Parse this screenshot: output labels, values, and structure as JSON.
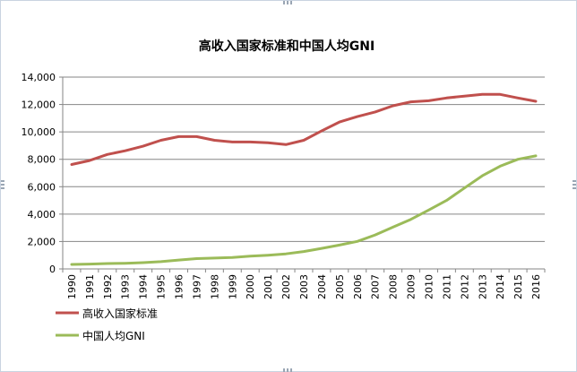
{
  "chart_data": {
    "type": "line",
    "title": "高收入国家标准和中国人均GNI",
    "xlabel": "",
    "ylabel": "",
    "ylim": [
      0,
      14000
    ],
    "yticks": [
      0,
      2000,
      4000,
      6000,
      8000,
      10000,
      12000,
      14000
    ],
    "ytick_labels": [
      "0",
      "2,000",
      "4,000",
      "6,000",
      "8,000",
      "10,000",
      "12,000",
      "14,000"
    ],
    "categories": [
      "1990",
      "1991",
      "1992",
      "1993",
      "1994",
      "1995",
      "1996",
      "1997",
      "1998",
      "1999",
      "2000",
      "2001",
      "2002",
      "2003",
      "2004",
      "2005",
      "2006",
      "2007",
      "2008",
      "2009",
      "2010",
      "2011",
      "2012",
      "2013",
      "2014",
      "2015",
      "2016"
    ],
    "grid": true,
    "legend_position": "bottom-left",
    "series": [
      {
        "name": "高收入国家标准",
        "color": "#c0504d",
        "values": [
          7620,
          7910,
          8355,
          8625,
          8955,
          9385,
          9655,
          9655,
          9385,
          9265,
          9265,
          9205,
          9075,
          9385,
          10065,
          10725,
          11115,
          11455,
          11905,
          12195,
          12275,
          12475,
          12615,
          12745,
          12735,
          12475,
          12235
        ]
      },
      {
        "name": "中国人均GNI",
        "color": "#9bbb59",
        "values": [
          330,
          350,
          390,
          410,
          460,
          530,
          650,
          750,
          790,
          840,
          930,
          1000,
          1100,
          1270,
          1500,
          1740,
          2010,
          2480,
          3050,
          3620,
          4300,
          5000,
          5900,
          6800,
          7500,
          8000,
          8250
        ]
      }
    ]
  }
}
